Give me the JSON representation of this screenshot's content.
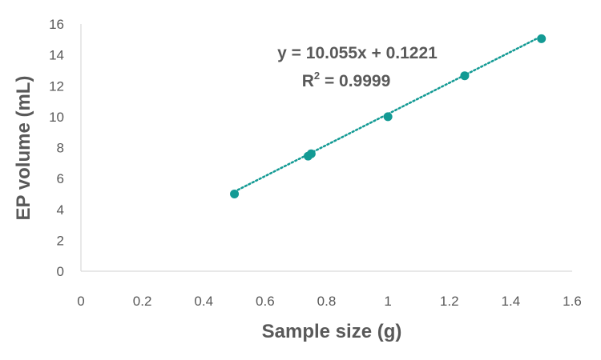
{
  "chart_data": {
    "type": "scatter",
    "title": "",
    "xlabel": "Sample size (g)",
    "ylabel": "EP volume (mL)",
    "xlim": [
      0,
      1.6
    ],
    "ylim": [
      0,
      16
    ],
    "xticks": [
      "0",
      "0.2",
      "0.4",
      "0.6",
      "0.8",
      "1",
      "1.2",
      "1.4",
      "1.6"
    ],
    "yticks": [
      "0",
      "2",
      "4",
      "6",
      "8",
      "10",
      "12",
      "14",
      "16"
    ],
    "xtick_values": [
      0,
      0.2,
      0.4,
      0.6,
      0.8,
      1.0,
      1.2,
      1.4,
      1.6
    ],
    "ytick_values": [
      0,
      2,
      4,
      6,
      8,
      10,
      12,
      14,
      16
    ],
    "grid": false,
    "legend": "none",
    "series": [
      {
        "name": "",
        "color": "#139a94",
        "x": [
          0.5,
          0.74,
          0.75,
          1.0,
          1.25,
          1.5
        ],
        "y": [
          5.0,
          7.45,
          7.6,
          10.0,
          12.65,
          15.05
        ]
      }
    ],
    "trendline": {
      "type": "linear",
      "slope": 10.055,
      "intercept": 0.1221,
      "x_range": [
        0.5,
        1.5
      ],
      "style": "dotted",
      "color": "#139a94"
    },
    "annotations": {
      "equation": "y = 10.055x + 0.1221",
      "r_squared_prefix": "R",
      "r_squared_exponent": "2",
      "r_squared_value": " = 0.9999"
    }
  }
}
